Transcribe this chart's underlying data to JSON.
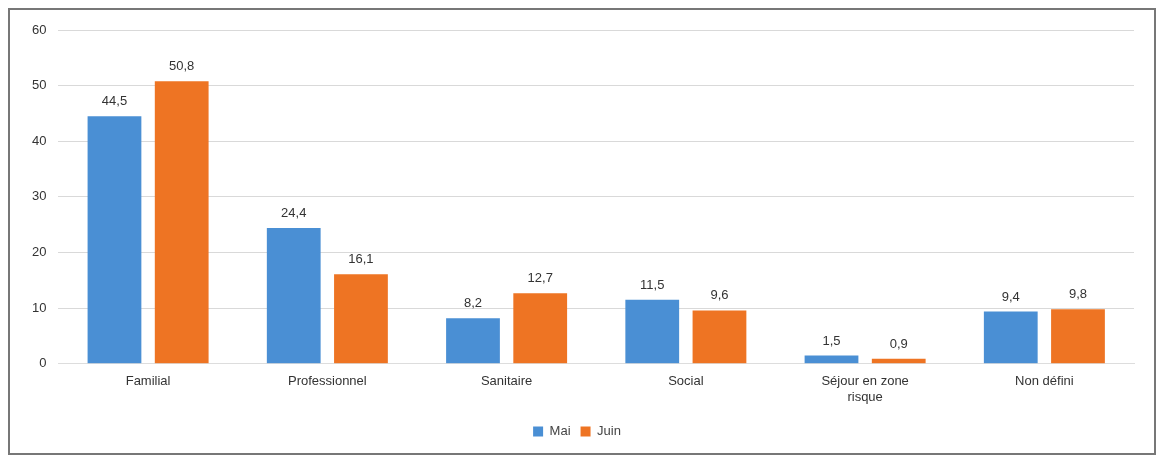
{
  "chart_data": {
    "type": "bar",
    "categories": [
      "Familial",
      "Professionnel",
      "Sanitaire",
      "Social",
      "Séjour en zone risque",
      "Non défini"
    ],
    "series": [
      {
        "name": "Mai",
        "color": "#4a8fd4",
        "values": [
          44.5,
          24.4,
          8.2,
          11.5,
          1.5,
          9.4
        ],
        "value_labels": [
          "44,5",
          "24,4",
          "8,2",
          "11,5",
          "1,5",
          "9,4"
        ]
      },
      {
        "name": "Juin",
        "color": "#ee7423",
        "values": [
          50.8,
          16.1,
          12.7,
          9.6,
          0.9,
          9.8
        ],
        "value_labels": [
          "50,8",
          "16,1",
          "12,7",
          "9,6",
          "0,9",
          "9,8"
        ]
      }
    ],
    "ylim": [
      0,
      60
    ],
    "yticks": [
      0,
      10,
      20,
      30,
      40,
      50,
      60
    ],
    "grid": "y",
    "legend": "bottom"
  }
}
